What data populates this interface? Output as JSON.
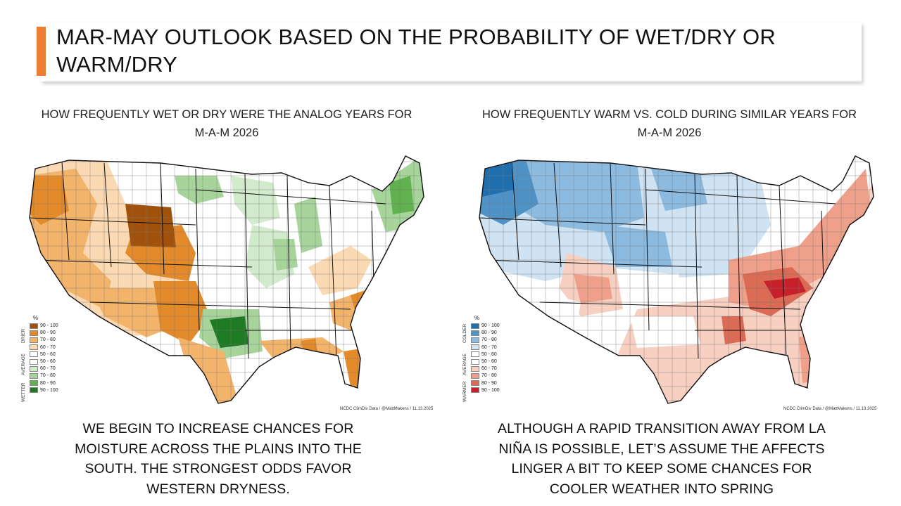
{
  "slide": {
    "title": "MAR-MAY OUTLOOK BASED ON THE PROBABILITY OF WET/DRY OR WARM/DRY"
  },
  "left_panel": {
    "title_line1": "HOW FREQUENTLY WET OR DRY WERE THE ANALOG YEARS FOR",
    "title_line2": "M-A-M 2026",
    "legend_unit": "%",
    "legend_categories": {
      "top": "DRIER",
      "mid": "AVERAGE",
      "bottom": "WETTER"
    },
    "legend": [
      {
        "label": "90 - 100",
        "color": "#a0520c"
      },
      {
        "label": "80 - 90",
        "color": "#e38a2a"
      },
      {
        "label": "70 - 80",
        "color": "#f2b36b"
      },
      {
        "label": "60 - 70",
        "color": "#fbd9b2"
      },
      {
        "label": "50 - 60",
        "color": "#ffffff"
      },
      {
        "label": "50 - 60",
        "color": "#ffffff"
      },
      {
        "label": "60 - 70",
        "color": "#d3ebcd"
      },
      {
        "label": "70 - 80",
        "color": "#a6d49a"
      },
      {
        "label": "80 - 90",
        "color": "#5fb24f"
      },
      {
        "label": "90 - 100",
        "color": "#1e7a23"
      }
    ],
    "credit": "NCDC ClimDiv Data / @MattMakens / 11.13.2025",
    "caption_line1": "WE BEGIN TO INCREASE CHANCES FOR",
    "caption_line2": "MOISTURE ACROSS THE PLAINS INTO THE",
    "caption_line3": "SOUTH. THE STRONGEST ODDS FAVOR",
    "caption_line4": "WESTERN DRYNESS."
  },
  "right_panel": {
    "title_line1": "HOW FREQUENTLY WARM VS. COLD DURING SIMILAR YEARS FOR",
    "title_line2": "M-A-M 2026",
    "legend_unit": "%",
    "legend_categories": {
      "top": "COLDER",
      "mid": "AVERAGE",
      "bottom": "WARMER"
    },
    "legend": [
      {
        "label": "90 - 100",
        "color": "#1f6fae"
      },
      {
        "label": "80 - 90",
        "color": "#4f92c6"
      },
      {
        "label": "70 - 80",
        "color": "#8dbbe0"
      },
      {
        "label": "60 - 70",
        "color": "#cfe3f2"
      },
      {
        "label": "50 - 60",
        "color": "#ffffff"
      },
      {
        "label": "50 - 60",
        "color": "#ffffff"
      },
      {
        "label": "60 - 70",
        "color": "#f7d0c2"
      },
      {
        "label": "70 - 80",
        "color": "#eea08b"
      },
      {
        "label": "80 - 90",
        "color": "#dc6b55"
      },
      {
        "label": "90 - 100",
        "color": "#c8202a"
      }
    ],
    "credit": "NCDC ClimDiv Data / @MattMakens / 11.13.2025",
    "caption_line1": "ALTHOUGH A RAPID TRANSITION AWAY FROM LA",
    "caption_line2": "NIÑA IS POSSIBLE, LET’S ASSUME THE AFFECTS",
    "caption_line3": "LINGER A BIT TO KEEP SOME CHANCES FOR",
    "caption_line4": "COOLER WEATHER INTO SPRING"
  }
}
